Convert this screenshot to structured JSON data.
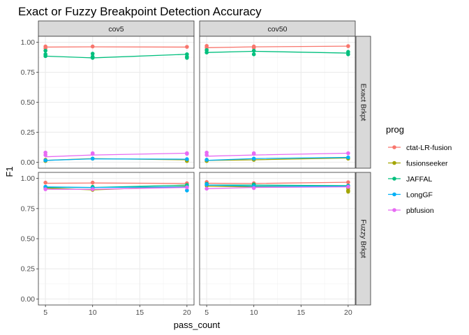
{
  "chart_data": {
    "type": "line",
    "title": "Exact or Fuzzy Breakpoint Detection Accuracy",
    "xlabel": "pass_count",
    "ylabel": "F1",
    "xlim": [
      4.25,
      20.75
    ],
    "ylim": [
      -0.05,
      1.05
    ],
    "x_ticks": [
      5,
      10,
      15,
      20
    ],
    "y_ticks": [
      0,
      0.25,
      0.5,
      0.75,
      1
    ],
    "y_tick_labels": [
      "0.00",
      "0.25",
      "0.50",
      "0.75",
      "1.00"
    ],
    "grid": true,
    "legend": {
      "title": "prog",
      "position": "right"
    },
    "columns": [
      "cov5",
      "cov50"
    ],
    "rows": [
      "Exact Brkpt",
      "Fuzzy Brkpt"
    ],
    "series": [
      {
        "name": "ctat-LR-fusion",
        "color": "#F8766D"
      },
      {
        "name": "fusionseeker",
        "color": "#A3A500"
      },
      {
        "name": "JAFFAL",
        "color": "#00BF7D"
      },
      {
        "name": "LongGF",
        "color": "#00B0F6"
      },
      {
        "name": "pbfusion",
        "color": "#E76BF3"
      }
    ],
    "panels": [
      {
        "col": "cov5",
        "row": "Exact Brkpt",
        "lines": {
          "ctat-LR-fusion": [
            [
              5,
              0.96
            ],
            [
              10,
              0.962
            ],
            [
              20,
              0.96
            ]
          ],
          "fusionseeker": [
            [
              5,
              0.015
            ],
            [
              10,
              0.03
            ],
            [
              20,
              0.02
            ]
          ],
          "JAFFAL": [
            [
              5,
              0.885
            ],
            [
              10,
              0.87
            ],
            [
              20,
              0.9
            ]
          ],
          "LongGF": [
            [
              5,
              0.015
            ],
            [
              10,
              0.028
            ],
            [
              20,
              0.025
            ]
          ],
          "pbfusion": [
            [
              5,
              0.045
            ],
            [
              10,
              0.06
            ],
            [
              20,
              0.075
            ]
          ]
        },
        "points": {
          "ctat-LR-fusion": [
            [
              5,
              0.965
            ],
            [
              5,
              0.95
            ],
            [
              10,
              0.965
            ],
            [
              20,
              0.962
            ]
          ],
          "fusionseeker": [
            [
              5,
              0.01
            ],
            [
              5,
              0.02
            ],
            [
              10,
              0.03
            ],
            [
              20,
              0.01
            ],
            [
              20,
              0.02
            ]
          ],
          "JAFFAL": [
            [
              5,
              0.93
            ],
            [
              5,
              0.9
            ],
            [
              5,
              0.885
            ],
            [
              10,
              0.905
            ],
            [
              10,
              0.88
            ],
            [
              10,
              0.87
            ],
            [
              20,
              0.9
            ],
            [
              20,
              0.88
            ],
            [
              20,
              0.87
            ]
          ],
          "LongGF": [
            [
              5,
              0.015
            ],
            [
              10,
              0.03
            ],
            [
              20,
              0.025
            ]
          ],
          "pbfusion": [
            [
              5,
              0.08
            ],
            [
              5,
              0.06
            ],
            [
              10,
              0.075
            ],
            [
              10,
              0.07
            ],
            [
              20,
              0.075
            ],
            [
              20,
              0.07
            ]
          ]
        }
      },
      {
        "col": "cov50",
        "row": "Exact Brkpt",
        "lines": {
          "ctat-LR-fusion": [
            [
              5,
              0.955
            ],
            [
              10,
              0.962
            ],
            [
              20,
              0.968
            ]
          ],
          "fusionseeker": [
            [
              5,
              0.015
            ],
            [
              10,
              0.02
            ],
            [
              20,
              0.035
            ]
          ],
          "JAFFAL": [
            [
              5,
              0.915
            ],
            [
              10,
              0.925
            ],
            [
              20,
              0.91
            ]
          ],
          "LongGF": [
            [
              5,
              0.015
            ],
            [
              10,
              0.03
            ],
            [
              20,
              0.04
            ]
          ],
          "pbfusion": [
            [
              5,
              0.05
            ],
            [
              10,
              0.06
            ],
            [
              20,
              0.075
            ]
          ]
        },
        "points": {
          "ctat-LR-fusion": [
            [
              5,
              0.97
            ],
            [
              5,
              0.955
            ],
            [
              10,
              0.965
            ],
            [
              10,
              0.955
            ],
            [
              20,
              0.968
            ]
          ],
          "fusionseeker": [
            [
              5,
              0.01
            ],
            [
              5,
              0.02
            ],
            [
              10,
              0.02
            ],
            [
              20,
              0.03
            ]
          ],
          "JAFFAL": [
            [
              5,
              0.935
            ],
            [
              5,
              0.915
            ],
            [
              10,
              0.93
            ],
            [
              10,
              0.9
            ],
            [
              20,
              0.92
            ],
            [
              20,
              0.9
            ]
          ],
          "LongGF": [
            [
              5,
              0.02
            ],
            [
              10,
              0.03
            ],
            [
              20,
              0.04
            ]
          ],
          "pbfusion": [
            [
              5,
              0.08
            ],
            [
              5,
              0.06
            ],
            [
              10,
              0.075
            ],
            [
              10,
              0.07
            ],
            [
              20,
              0.075
            ]
          ]
        }
      },
      {
        "col": "cov5",
        "row": "Fuzzy Brkpt",
        "lines": {
          "ctat-LR-fusion": [
            [
              5,
              0.96
            ],
            [
              10,
              0.962
            ],
            [
              20,
              0.958
            ]
          ],
          "fusionseeker": [
            [
              5,
              0.92
            ],
            [
              10,
              0.905
            ],
            [
              20,
              0.935
            ]
          ],
          "JAFFAL": [
            [
              5,
              0.925
            ],
            [
              10,
              0.925
            ],
            [
              20,
              0.945
            ]
          ],
          "LongGF": [
            [
              5,
              0.93
            ],
            [
              10,
              0.925
            ],
            [
              20,
              0.93
            ]
          ],
          "pbfusion": [
            [
              5,
              0.91
            ],
            [
              10,
              0.91
            ],
            [
              20,
              0.925
            ]
          ]
        },
        "points": {
          "ctat-LR-fusion": [
            [
              5,
              0.965
            ],
            [
              10,
              0.965
            ],
            [
              20,
              0.96
            ]
          ],
          "fusionseeker": [
            [
              5,
              0.92
            ],
            [
              10,
              0.905
            ],
            [
              20,
              0.935
            ]
          ],
          "JAFFAL": [
            [
              5,
              0.93
            ],
            [
              10,
              0.93
            ],
            [
              20,
              0.945
            ]
          ],
          "LongGF": [
            [
              5,
              0.93
            ],
            [
              10,
              0.92
            ],
            [
              20,
              0.93
            ],
            [
              20,
              0.9
            ]
          ],
          "pbfusion": [
            [
              5,
              0.91
            ],
            [
              10,
              0.91
            ],
            [
              20,
              0.925
            ]
          ]
        }
      },
      {
        "col": "cov50",
        "row": "Fuzzy Brkpt",
        "lines": {
          "ctat-LR-fusion": [
            [
              5,
              0.96
            ],
            [
              10,
              0.958
            ],
            [
              20,
              0.968
            ]
          ],
          "fusionseeker": [
            [
              5,
              0.935
            ],
            [
              10,
              0.93
            ],
            [
              20,
              0.935
            ]
          ],
          "JAFFAL": [
            [
              5,
              0.945
            ],
            [
              10,
              0.945
            ],
            [
              20,
              0.94
            ]
          ],
          "LongGF": [
            [
              5,
              0.945
            ],
            [
              10,
              0.935
            ],
            [
              20,
              0.935
            ]
          ],
          "pbfusion": [
            [
              5,
              0.915
            ],
            [
              10,
              0.925
            ],
            [
              20,
              0.93
            ]
          ]
        },
        "points": {
          "ctat-LR-fusion": [
            [
              5,
              0.97
            ],
            [
              10,
              0.96
            ],
            [
              20,
              0.968
            ]
          ],
          "fusionseeker": [
            [
              5,
              0.94
            ],
            [
              10,
              0.93
            ],
            [
              20,
              0.92
            ],
            [
              20,
              0.9
            ],
            [
              20,
              0.89
            ]
          ],
          "JAFFAL": [
            [
              5,
              0.955
            ],
            [
              10,
              0.95
            ],
            [
              20,
              0.94
            ]
          ],
          "LongGF": [
            [
              5,
              0.95
            ],
            [
              10,
              0.935
            ],
            [
              20,
              0.935
            ]
          ],
          "pbfusion": [
            [
              5,
              0.915
            ],
            [
              10,
              0.92
            ],
            [
              20,
              0.93
            ]
          ]
        }
      }
    ]
  }
}
